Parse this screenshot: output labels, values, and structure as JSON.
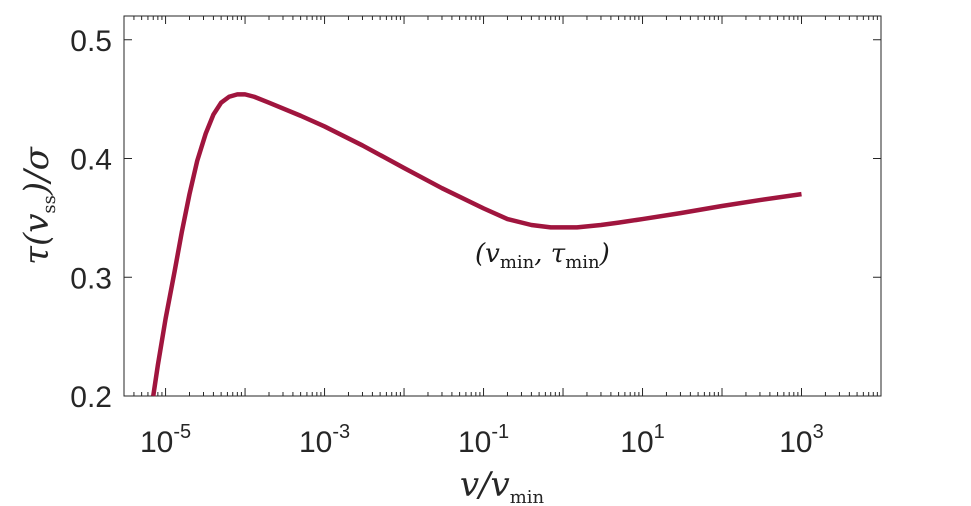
{
  "chart_data": {
    "type": "line",
    "xscale": "log",
    "xlim": [
      3e-06,
      10000.0
    ],
    "ylim": [
      0.2,
      0.52
    ],
    "xticks": [
      {
        "value": 1e-05,
        "base": "10",
        "exp": "-5"
      },
      {
        "value": 0.001,
        "base": "10",
        "exp": "-3"
      },
      {
        "value": 0.1,
        "base": "10",
        "exp": "-1"
      },
      {
        "value": 10.0,
        "base": "10",
        "exp": "1"
      },
      {
        "value": 1000.0,
        "base": "10",
        "exp": "3"
      }
    ],
    "yticks": [
      {
        "value": 0.2,
        "label": "0.2"
      },
      {
        "value": 0.3,
        "label": "0.3"
      },
      {
        "value": 0.4,
        "label": "0.4"
      },
      {
        "value": 0.5,
        "label": "0.5"
      }
    ],
    "xlabel": {
      "main": "v/v",
      "sub": "min"
    },
    "ylabel": {
      "pre": "τ(v",
      "sub": "ss",
      "post": ")/σ"
    },
    "series": [
      {
        "color": "#a0153e",
        "x": [
          7e-06,
          8e-06,
          1e-05,
          1.3e-05,
          1.6e-05,
          2e-05,
          2.5e-05,
          3.2e-05,
          4e-05,
          5e-05,
          6.3e-05,
          8e-05,
          0.0001,
          0.00013,
          0.0002,
          0.0005,
          0.001,
          0.003,
          0.01,
          0.03,
          0.1,
          0.2,
          0.4,
          0.7,
          1,
          1.5,
          3,
          5,
          10,
          30,
          100,
          300,
          1000
        ],
        "y": [
          0.2,
          0.226,
          0.265,
          0.305,
          0.338,
          0.37,
          0.398,
          0.421,
          0.437,
          0.447,
          0.452,
          0.454,
          0.454,
          0.452,
          0.447,
          0.436,
          0.427,
          0.411,
          0.392,
          0.375,
          0.358,
          0.349,
          0.344,
          0.342,
          0.342,
          0.342,
          0.344,
          0.346,
          0.349,
          0.354,
          0.36,
          0.365,
          0.37
        ]
      }
    ],
    "annotations": [
      {
        "x": 1.0,
        "y": 0.342,
        "pre": "(v",
        "sub1": "min",
        "mid": ", τ",
        "sub2": "min",
        "post": ")"
      }
    ]
  }
}
